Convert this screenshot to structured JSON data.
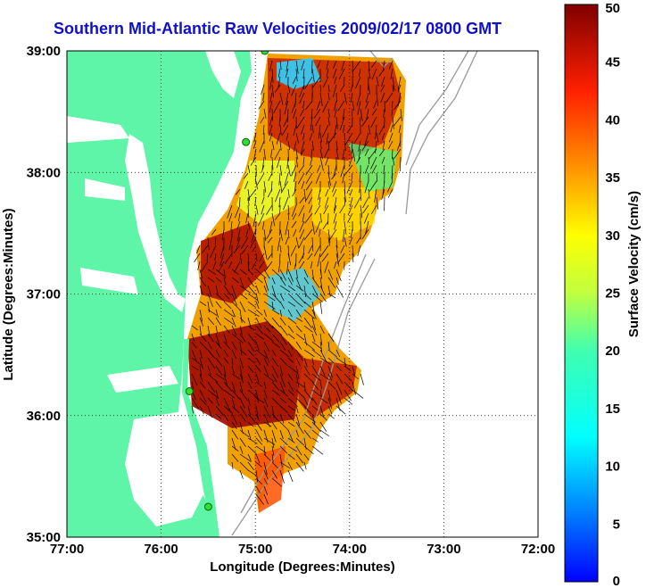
{
  "title": "Southern Mid-Atlantic Raw Velocities 2009/02/17 0800 GMT",
  "axes": {
    "xlabel": "Longitude (Degrees:Minutes)",
    "ylabel": "Latitude (Degrees:Minutes)",
    "x_ticks": [
      "77:00",
      "76:00",
      "75:00",
      "74:00",
      "73:00",
      "72:00"
    ],
    "y_ticks": [
      "39:00",
      "38:00",
      "37:00",
      "36:00",
      "35:00"
    ],
    "lon_range": [
      -77,
      -72
    ],
    "lat_range": [
      35,
      39
    ],
    "grid": true
  },
  "colorbar": {
    "label": "Surface Velocity (cm/s)",
    "ticks": [
      "50",
      "45",
      "40",
      "35",
      "30",
      "25",
      "20",
      "15",
      "10",
      "5",
      "0"
    ],
    "range": [
      0,
      50
    ],
    "colormap": "jet"
  },
  "colors": {
    "land": "#5ef5a8",
    "ocean": "#ffffff",
    "title": "#1010cc",
    "station": "#33dd33"
  },
  "stations": [
    {
      "lon": -74.9,
      "lat": 39.0
    },
    {
      "lon": -75.1,
      "lat": 38.25
    },
    {
      "lon": -75.7,
      "lat": 36.2
    },
    {
      "lon": -75.5,
      "lat": 35.25
    }
  ]
}
